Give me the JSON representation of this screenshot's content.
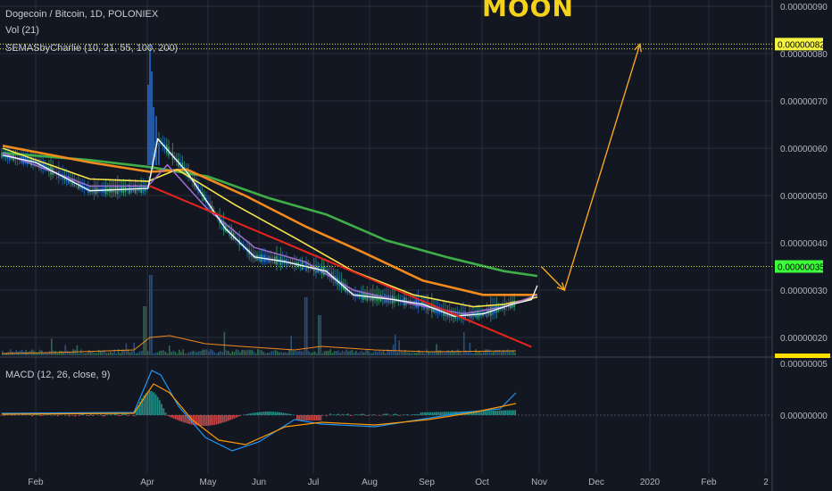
{
  "header": {
    "symbol": "Dogecoin / Bitcoin, 1D, POLONIEX",
    "vol": "Vol (21)",
    "sema": "SEMASbyCharlie (10, 21, 55, 100, 200)",
    "macd": "MACD (12, 26, close, 9)",
    "annotation": "MOON"
  },
  "colors": {
    "background": "#131722",
    "grid": "#2a2e39",
    "ema10": "#ffffff",
    "ema21": "#a06ed2",
    "ema55": "#f5e44a",
    "ema100": "#f28a1e",
    "ema200": "#3fae49",
    "trendline": "#e8241c",
    "arrow": "#f5a623",
    "tag_yellow": "#f5f542",
    "tag_green": "#3cff3c"
  },
  "chart_data": {
    "type": "line",
    "price_axis": {
      "ticks": [
        "0.00000090",
        "0.00000080",
        "0.00000070",
        "0.00000060",
        "0.00000050",
        "0.00000040",
        "0.00000030",
        "0.00000020"
      ],
      "ylim": [
        1.5e-07,
        9.3e-07
      ]
    },
    "macd_axis": {
      "ticks": [
        "0.00000005",
        "0.00000000"
      ]
    },
    "x_axis": {
      "ticks": [
        "Feb",
        "Apr",
        "May",
        "Jun",
        "Jul",
        "Aug",
        "Sep",
        "Oct",
        "Nov",
        "Dec",
        "2020",
        "Feb",
        "2"
      ]
    },
    "price_tags": {
      "target": "0.00000082",
      "current": "0.00000035"
    },
    "series": [
      {
        "name": "EMA 10",
        "x": [
          "Jan 15",
          "Feb 1",
          "Mar 1",
          "Mar 31",
          "Apr 5",
          "Apr 20",
          "May 10",
          "May 25",
          "Jun 10",
          "Jul 1",
          "Jul 15",
          "Aug 5",
          "Aug 20",
          "Sep 5",
          "Sep 20",
          "Oct 5",
          "Oct 15",
          "Oct 18"
        ],
        "values": [
          5.85e-07,
          5.7e-07,
          5.1e-07,
          5.15e-07,
          6.2e-07,
          5.5e-07,
          4.3e-07,
          3.7e-07,
          3.6e-07,
          3.4e-07,
          2.9e-07,
          2.8e-07,
          2.7e-07,
          2.45e-07,
          2.5e-07,
          2.7e-07,
          2.8e-07,
          3.1e-07
        ]
      },
      {
        "name": "EMA 21",
        "x": [
          "Jan 15",
          "Mar 1",
          "Mar 31",
          "Apr 10",
          "May 1",
          "May 25",
          "Jun 20",
          "Jul 15",
          "Aug 15",
          "Sep 10",
          "Oct 1",
          "Oct 18"
        ],
        "values": [
          5.9e-07,
          5.2e-07,
          5.2e-07,
          5.65e-07,
          4.7e-07,
          3.9e-07,
          3.6e-07,
          3e-07,
          2.7e-07,
          2.5e-07,
          2.65e-07,
          2.9e-07
        ]
      },
      {
        "name": "EMA 55",
        "x": [
          "Jan 15",
          "Mar 1",
          "Mar 31",
          "Apr 15",
          "May 15",
          "Jun 15",
          "Jul 15",
          "Aug 15",
          "Sep 15",
          "Oct 1",
          "Oct 18"
        ],
        "values": [
          6e-07,
          5.35e-07,
          5.3e-07,
          5.55e-07,
          4.8e-07,
          4.1e-07,
          3.4e-07,
          2.9e-07,
          2.65e-07,
          2.7e-07,
          2.85e-07
        ]
      },
      {
        "name": "EMA 100",
        "x": [
          "Jan 15",
          "Mar 1",
          "Apr 1",
          "Apr 20",
          "May 20",
          "Jun 20",
          "Jul 20",
          "Aug 20",
          "Sep 20",
          "Oct 18"
        ],
        "values": [
          6.05e-07,
          5.7e-07,
          5.5e-07,
          5.55e-07,
          5e-07,
          4.35e-07,
          3.8e-07,
          3.2e-07,
          2.9e-07,
          2.9e-07
        ]
      },
      {
        "name": "EMA 200",
        "x": [
          "Jan 15",
          "Mar 1",
          "Apr 1",
          "May 1",
          "Jun 1",
          "Jul 1",
          "Aug 1",
          "Sep 1",
          "Oct 1",
          "Oct 18"
        ],
        "values": [
          5.9e-07,
          5.75e-07,
          5.6e-07,
          5.4e-07,
          4.95e-07,
          4.6e-07,
          4.05e-07,
          3.7e-07,
          3.4e-07,
          3.3e-07
        ]
      }
    ],
    "trendline": {
      "x": [
        "Apr 1",
        "Oct 15"
      ],
      "values": [
        5.2e-07,
        1.8e-07
      ]
    },
    "projection": {
      "x": [
        "Oct 20",
        "Nov 1",
        "Dec 10"
      ],
      "values": [
        3.5e-07,
        3e-07,
        8.2e-07
      ]
    },
    "volume_peak_dates": [
      "Apr 2",
      "Jul 1",
      "Jul 10"
    ]
  }
}
